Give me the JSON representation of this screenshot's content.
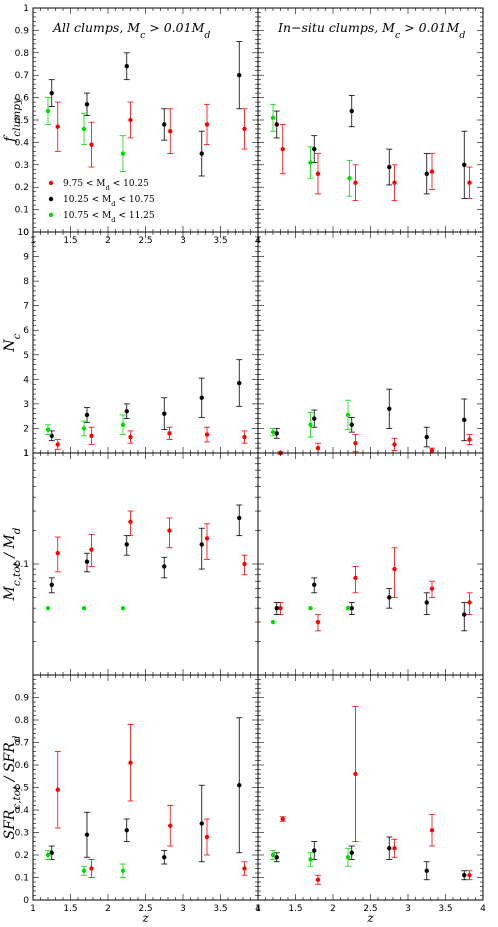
{
  "figure": {
    "series": [
      {
        "name": "9.75 < M_d < 10.25",
        "color": "#ff0000"
      },
      {
        "name": "10.25 < M_d < 10.75",
        "color": "#000000"
      },
      {
        "name": "10.75 < M_d < 11.25",
        "color": "#00dd00"
      }
    ],
    "column_titles": [
      "All clumps, M_c > 0.01M_d",
      "In−situ clumps, M_c > 0.01M_d"
    ],
    "xlabel": "z"
  },
  "chart_data": [
    {
      "type": "scatter",
      "row": 0,
      "col": 0,
      "title": "All clumps, M_c > 0.01M_d",
      "ylabel": "f_clumpy",
      "xlabel": "",
      "xlim": [
        1,
        4
      ],
      "ylim": [
        0,
        1
      ],
      "yticks": [
        "0",
        "0.1",
        "0.2",
        "0.3",
        "0.4",
        "0.5",
        "0.6",
        "0.7",
        "0.8",
        "0.9",
        "1"
      ],
      "xticks": [
        "1",
        "1.5",
        "2",
        "2.5",
        "3",
        "3.5",
        "4"
      ],
      "legend": "lower-left",
      "series": [
        {
          "name": "9.75 < M_d < 10.25",
          "color": "#ff0000",
          "x": [
            1.33,
            1.78,
            2.3,
            2.83,
            3.32,
            3.82
          ],
          "y": [
            0.47,
            0.39,
            0.5,
            0.45,
            0.48,
            0.46
          ],
          "yerr_low": [
            0.11,
            0.1,
            0.08,
            0.1,
            0.09,
            0.09
          ],
          "yerr_high": [
            0.11,
            0.1,
            0.08,
            0.1,
            0.09,
            0.09
          ]
        },
        {
          "name": "10.25 < M_d < 10.75",
          "color": "#000000",
          "x": [
            1.25,
            1.72,
            2.25,
            2.75,
            3.25,
            3.75
          ],
          "y": [
            0.62,
            0.57,
            0.74,
            0.48,
            0.35,
            0.7
          ],
          "yerr_low": [
            0.06,
            0.05,
            0.06,
            0.07,
            0.1,
            0.15
          ],
          "yerr_high": [
            0.06,
            0.05,
            0.06,
            0.07,
            0.1,
            0.15
          ]
        },
        {
          "name": "10.75 < M_d < 11.25",
          "color": "#00dd00",
          "x": [
            1.2,
            1.68,
            2.2
          ],
          "y": [
            0.54,
            0.46,
            0.35
          ],
          "yerr_low": [
            0.06,
            0.07,
            0.08
          ],
          "yerr_high": [
            0.06,
            0.07,
            0.08
          ]
        }
      ]
    },
    {
      "type": "scatter",
      "row": 0,
      "col": 1,
      "title": "In−situ clumps, M_c > 0.01M_d",
      "ylabel": "",
      "xlabel": "",
      "xlim": [
        1,
        4
      ],
      "ylim": [
        0,
        1
      ],
      "yticks": [],
      "xticks": [],
      "series": [
        {
          "name": "9.75 < M_d < 10.25",
          "color": "#ff0000",
          "x": [
            1.33,
            1.8,
            2.3,
            2.82,
            3.32,
            3.82
          ],
          "y": [
            0.37,
            0.26,
            0.22,
            0.22,
            0.27,
            0.22
          ],
          "yerr_low": [
            0.11,
            0.09,
            0.08,
            0.08,
            0.08,
            0.07
          ],
          "yerr_high": [
            0.11,
            0.09,
            0.08,
            0.08,
            0.08,
            0.07
          ]
        },
        {
          "name": "10.25 < M_d < 10.75",
          "color": "#000000",
          "x": [
            1.25,
            1.75,
            2.25,
            2.75,
            3.25,
            3.75
          ],
          "y": [
            0.48,
            0.37,
            0.54,
            0.29,
            0.26,
            0.3
          ],
          "yerr_low": [
            0.06,
            0.06,
            0.07,
            0.08,
            0.09,
            0.15
          ],
          "yerr_high": [
            0.06,
            0.06,
            0.07,
            0.08,
            0.09,
            0.15
          ]
        },
        {
          "name": "10.75 < M_d < 11.25",
          "color": "#00dd00",
          "x": [
            1.2,
            1.7,
            2.22
          ],
          "y": [
            0.51,
            0.31,
            0.24
          ],
          "yerr_low": [
            0.06,
            0.07,
            0.08
          ],
          "yerr_high": [
            0.06,
            0.07,
            0.08
          ]
        }
      ]
    },
    {
      "type": "scatter",
      "row": 1,
      "col": 0,
      "ylabel": "N_c",
      "xlabel": "",
      "xlim": [
        1,
        4
      ],
      "ylim": [
        1,
        10
      ],
      "yticks": [
        "1",
        "2",
        "3",
        "4",
        "5",
        "6",
        "7",
        "8",
        "9",
        "10"
      ],
      "xticks": [],
      "series": [
        {
          "name": "9.75 < M_d < 10.25",
          "color": "#ff0000",
          "x": [
            1.33,
            1.78,
            2.3,
            2.82,
            3.32,
            3.82
          ],
          "y": [
            1.35,
            1.7,
            1.65,
            1.8,
            1.75,
            1.65
          ],
          "yerr_low": [
            0.2,
            0.35,
            0.25,
            0.25,
            0.3,
            0.25
          ],
          "yerr_high": [
            0.2,
            0.35,
            0.25,
            0.25,
            0.3,
            0.25
          ]
        },
        {
          "name": "10.25 < M_d < 10.75",
          "color": "#000000",
          "x": [
            1.25,
            1.72,
            2.25,
            2.75,
            3.25,
            3.75
          ],
          "y": [
            1.7,
            2.55,
            2.7,
            2.6,
            3.25,
            3.85
          ],
          "yerr_low": [
            0.2,
            0.3,
            0.3,
            0.65,
            0.8,
            0.95
          ],
          "yerr_high": [
            0.2,
            0.3,
            0.3,
            0.65,
            0.8,
            0.95
          ]
        },
        {
          "name": "10.75 < M_d < 11.25",
          "color": "#00dd00",
          "x": [
            1.2,
            1.68,
            2.2
          ],
          "y": [
            1.95,
            2.0,
            2.15
          ],
          "yerr_low": [
            0.2,
            0.3,
            0.4
          ],
          "yerr_high": [
            0.2,
            0.3,
            0.4
          ]
        }
      ]
    },
    {
      "type": "scatter",
      "row": 1,
      "col": 1,
      "ylabel": "",
      "xlabel": "",
      "xlim": [
        1,
        4
      ],
      "ylim": [
        1,
        10
      ],
      "yticks": [],
      "xticks": [],
      "series": [
        {
          "name": "9.75 < M_d < 10.25",
          "color": "#ff0000",
          "x": [
            1.3,
            1.8,
            2.3,
            2.82,
            3.32,
            3.82
          ],
          "y": [
            1.0,
            1.2,
            1.4,
            1.35,
            1.1,
            1.55
          ],
          "yerr_low": [
            0.05,
            0.2,
            0.35,
            0.25,
            0.1,
            0.2
          ],
          "yerr_high": [
            0.05,
            0.2,
            0.35,
            0.25,
            0.1,
            0.2
          ]
        },
        {
          "name": "10.25 < M_d < 10.75",
          "color": "#000000",
          "x": [
            1.25,
            1.75,
            2.25,
            2.75,
            3.25,
            3.75
          ],
          "y": [
            1.8,
            2.4,
            2.15,
            2.8,
            1.65,
            2.35
          ],
          "yerr_low": [
            0.2,
            0.35,
            0.3,
            0.8,
            0.4,
            0.85
          ],
          "yerr_high": [
            0.2,
            0.35,
            0.3,
            0.8,
            0.4,
            0.85
          ]
        },
        {
          "name": "10.75 < M_d < 11.25",
          "color": "#00dd00",
          "x": [
            1.2,
            1.7,
            2.2
          ],
          "y": [
            1.85,
            2.15,
            2.55
          ],
          "yerr_low": [
            0.15,
            0.5,
            0.6
          ],
          "yerr_high": [
            0.15,
            0.5,
            0.6
          ]
        }
      ]
    },
    {
      "type": "scatter",
      "row": 2,
      "col": 0,
      "ylabel": "M_c,tot / M_d",
      "xlabel": "",
      "xlim": [
        1,
        4
      ],
      "ylim": [
        0.01,
        1
      ],
      "yscale": "log",
      "yticks": [
        "0.1",
        "1"
      ],
      "xticks": [],
      "series": [
        {
          "name": "9.75 < M_d < 10.25",
          "color": "#ff0000",
          "x": [
            1.33,
            1.78,
            2.3,
            2.82,
            3.32,
            3.82
          ],
          "y": [
            0.125,
            0.135,
            0.24,
            0.2,
            0.17,
            0.1
          ],
          "yerr_low": [
            0.04,
            0.04,
            0.06,
            0.06,
            0.06,
            0.02
          ],
          "yerr_high": [
            0.05,
            0.05,
            0.06,
            0.06,
            0.06,
            0.02
          ]
        },
        {
          "name": "10.25 < M_d < 10.75",
          "color": "#000000",
          "x": [
            1.25,
            1.72,
            2.25,
            2.75,
            3.25,
            3.75
          ],
          "y": [
            0.065,
            0.105,
            0.15,
            0.095,
            0.15,
            0.26
          ],
          "yerr_low": [
            0.01,
            0.02,
            0.03,
            0.02,
            0.06,
            0.08
          ],
          "yerr_high": [
            0.01,
            0.02,
            0.03,
            0.02,
            0.06,
            0.08
          ]
        },
        {
          "name": "10.75 < M_d < 11.25",
          "color": "#00dd00",
          "x": [
            1.2,
            1.68,
            2.2
          ],
          "y": [
            0.04,
            0.04,
            0.04
          ],
          "yerr_low": [
            0,
            0,
            0
          ],
          "yerr_high": [
            0,
            0,
            0
          ]
        }
      ]
    },
    {
      "type": "scatter",
      "row": 2,
      "col": 1,
      "ylabel": "",
      "xlabel": "",
      "xlim": [
        1,
        4
      ],
      "ylim": [
        0.01,
        1
      ],
      "yscale": "log",
      "yticks": [],
      "xticks": [],
      "series": [
        {
          "name": "9.75 < M_d < 10.25",
          "color": "#ff0000",
          "x": [
            1.3,
            1.8,
            2.3,
            2.82,
            3.32,
            3.82
          ],
          "y": [
            0.04,
            0.03,
            0.075,
            0.09,
            0.06,
            0.045
          ],
          "yerr_low": [
            0.005,
            0.005,
            0.02,
            0.04,
            0.01,
            0.01
          ],
          "yerr_high": [
            0.005,
            0.005,
            0.02,
            0.05,
            0.01,
            0.01
          ]
        },
        {
          "name": "10.25 < M_d < 10.75",
          "color": "#000000",
          "x": [
            1.25,
            1.75,
            2.25,
            2.75,
            3.25,
            3.75
          ],
          "y": [
            0.04,
            0.065,
            0.04,
            0.05,
            0.045,
            0.035
          ],
          "yerr_low": [
            0.005,
            0.01,
            0.005,
            0.01,
            0.01,
            0.01
          ],
          "yerr_high": [
            0.005,
            0.01,
            0.005,
            0.01,
            0.01,
            0.01
          ]
        },
        {
          "name": "10.75 < M_d < 11.25",
          "color": "#00dd00",
          "x": [
            1.2,
            1.7,
            2.2
          ],
          "y": [
            0.03,
            0.04,
            0.04
          ],
          "yerr_low": [
            0,
            0,
            0
          ],
          "yerr_high": [
            0,
            0,
            0
          ]
        }
      ]
    },
    {
      "type": "scatter",
      "row": 3,
      "col": 0,
      "ylabel": "SFR_c,tot / SFR_d",
      "xlabel": "z",
      "xlim": [
        1,
        4
      ],
      "ylim": [
        0,
        1
      ],
      "yticks": [
        "0",
        "0.1",
        "0.2",
        "0.3",
        "0.4",
        "0.5",
        "0.6",
        "0.7",
        "0.8",
        "0.9"
      ],
      "xticks": [
        "1",
        "1.5",
        "2",
        "2.5",
        "3",
        "3.5",
        "4"
      ],
      "series": [
        {
          "name": "9.75 < M_d < 10.25",
          "color": "#ff0000",
          "x": [
            1.33,
            1.78,
            2.3,
            2.83,
            3.32,
            3.82
          ],
          "y": [
            0.49,
            0.14,
            0.61,
            0.33,
            0.28,
            0.14
          ],
          "yerr_low": [
            0.17,
            0.04,
            0.17,
            0.09,
            0.08,
            0.03
          ],
          "yerr_high": [
            0.17,
            0.04,
            0.17,
            0.09,
            0.08,
            0.03
          ]
        },
        {
          "name": "10.25 < M_d < 10.75",
          "color": "#000000",
          "x": [
            1.25,
            1.72,
            2.25,
            2.75,
            3.25,
            3.75
          ],
          "y": [
            0.21,
            0.29,
            0.31,
            0.19,
            0.34,
            0.51
          ],
          "yerr_low": [
            0.03,
            0.1,
            0.05,
            0.03,
            0.17,
            0.3
          ],
          "yerr_high": [
            0.03,
            0.1,
            0.05,
            0.03,
            0.17,
            0.3
          ]
        },
        {
          "name": "10.75 < M_d < 11.25",
          "color": "#00dd00",
          "x": [
            1.2,
            1.68,
            2.2
          ],
          "y": [
            0.2,
            0.13,
            0.13
          ],
          "yerr_low": [
            0.02,
            0.02,
            0.03
          ],
          "yerr_high": [
            0.02,
            0.02,
            0.03
          ]
        }
      ]
    },
    {
      "type": "scatter",
      "row": 3,
      "col": 1,
      "ylabel": "",
      "xlabel": "z",
      "xlim": [
        1,
        4
      ],
      "ylim": [
        0,
        1
      ],
      "yticks": [],
      "xticks": [
        "1",
        "1.5",
        "2",
        "2.5",
        "3",
        "3.5",
        "4"
      ],
      "series": [
        {
          "name": "9.75 < M_d < 10.25",
          "color": "#ff0000",
          "x": [
            1.33,
            1.8,
            2.3,
            2.82,
            3.32,
            3.82
          ],
          "y": [
            0.36,
            0.09,
            0.56,
            0.23,
            0.31,
            0.11
          ],
          "yerr_low": [
            0.01,
            0.02,
            0.3,
            0.04,
            0.07,
            0.02
          ],
          "yerr_high": [
            0.01,
            0.02,
            0.3,
            0.04,
            0.07,
            0.02
          ]
        },
        {
          "name": "10.25 < M_d < 10.75",
          "color": "#000000",
          "x": [
            1.25,
            1.75,
            2.25,
            2.75,
            3.25,
            3.75
          ],
          "y": [
            0.19,
            0.22,
            0.21,
            0.23,
            0.13,
            0.11
          ],
          "yerr_low": [
            0.02,
            0.04,
            0.03,
            0.05,
            0.04,
            0.02
          ],
          "yerr_high": [
            0.02,
            0.04,
            0.03,
            0.05,
            0.04,
            0.02
          ]
        },
        {
          "name": "10.75 < M_d < 11.25",
          "color": "#00dd00",
          "x": [
            1.2,
            1.7,
            2.2
          ],
          "y": [
            0.2,
            0.18,
            0.19
          ],
          "yerr_low": [
            0.02,
            0.03,
            0.04
          ],
          "yerr_high": [
            0.02,
            0.03,
            0.04
          ]
        }
      ]
    }
  ]
}
